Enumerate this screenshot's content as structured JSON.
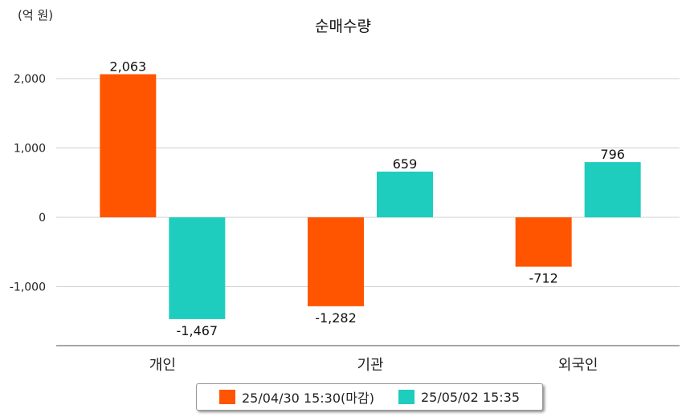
{
  "chart_data": {
    "type": "bar",
    "title": "순매수량",
    "unit": "(억 원)",
    "categories": [
      "개인",
      "기관",
      "외국인"
    ],
    "series": [
      {
        "name": "25/04/30 15:30(마감)",
        "color": "#ff5500",
        "values": [
          2063,
          -1282,
          -712
        ]
      },
      {
        "name": "25/05/02 15:35",
        "color": "#1ecdbd",
        "values": [
          -1467,
          659,
          796
        ]
      }
    ],
    "data_labels": [
      [
        "2,063",
        "-1,282",
        "-712"
      ],
      [
        "-1,467",
        "659",
        "796"
      ]
    ],
    "ylim": [
      -1830,
      2000
    ],
    "y_ticks": [
      2000,
      1000,
      0,
      -1000
    ],
    "y_tick_labels": [
      "2,000",
      "1,000",
      "0",
      "-1,000"
    ],
    "grid": true,
    "legend": "bottom"
  }
}
